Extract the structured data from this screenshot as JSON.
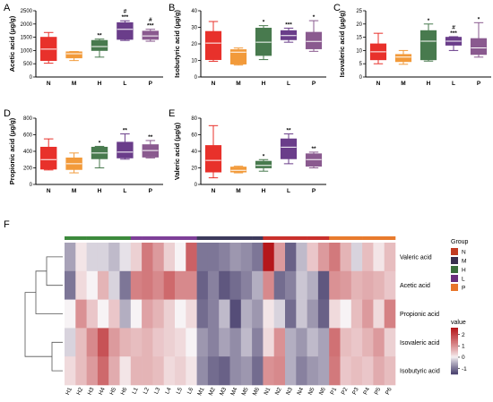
{
  "chart_data": [
    {
      "type": "box",
      "panel": "A",
      "ylabel": "Acetic acid (μg/g)",
      "ylim": [
        0,
        2500
      ],
      "yticks": [
        0,
        500,
        1000,
        1500,
        2000,
        2500
      ],
      "categories": [
        "N",
        "M",
        "H",
        "L",
        "P"
      ],
      "boxes": [
        {
          "min": 520,
          "q1": 620,
          "median": 1050,
          "q3": 1500,
          "max": 1680,
          "sig": []
        },
        {
          "min": 620,
          "q1": 720,
          "median": 880,
          "q3": 950,
          "max": 960,
          "sig": []
        },
        {
          "min": 750,
          "q1": 1000,
          "median": 1150,
          "q3": 1380,
          "max": 1430,
          "sig": [
            "**"
          ]
        },
        {
          "min": 1380,
          "q1": 1420,
          "median": 1800,
          "q3": 2050,
          "max": 2120,
          "sig": [
            "#",
            "***"
          ]
        },
        {
          "min": 1350,
          "q1": 1420,
          "median": 1550,
          "q3": 1730,
          "max": 1800,
          "sig": [
            "#",
            "***"
          ]
        }
      ]
    },
    {
      "type": "box",
      "panel": "B",
      "ylabel": "Isobutyric acid (μg/g)",
      "ylim": [
        0,
        40
      ],
      "yticks": [
        0,
        10,
        20,
        30,
        40
      ],
      "categories": [
        "N",
        "M",
        "H",
        "L",
        "P"
      ],
      "boxes": [
        {
          "min": 9.5,
          "q1": 10.5,
          "median": 20.5,
          "q3": 27.5,
          "max": 33.5,
          "sig": []
        },
        {
          "min": 7.2,
          "q1": 7.8,
          "median": 15,
          "q3": 16.5,
          "max": 17.5,
          "sig": []
        },
        {
          "min": 10.5,
          "q1": 13,
          "median": 21,
          "q3": 29.5,
          "max": 31,
          "sig": [
            "*"
          ]
        },
        {
          "min": 21,
          "q1": 22.5,
          "median": 25,
          "q3": 28,
          "max": 29.5,
          "sig": [
            "***"
          ]
        },
        {
          "min": 15.5,
          "q1": 17,
          "median": 21.5,
          "q3": 27,
          "max": 34,
          "sig": [
            "*"
          ]
        }
      ]
    },
    {
      "type": "box",
      "panel": "C",
      "ylabel": "Isovaleric acid (μg/g)",
      "ylim": [
        0,
        25
      ],
      "yticks": [
        0,
        5,
        10,
        15,
        20,
        25
      ],
      "categories": [
        "N",
        "M",
        "H",
        "L",
        "P"
      ],
      "boxes": [
        {
          "min": 5,
          "q1": 6.5,
          "median": 9.5,
          "q3": 12.5,
          "max": 16.5,
          "sig": []
        },
        {
          "min": 4.8,
          "q1": 5.8,
          "median": 7.5,
          "q3": 8.5,
          "max": 10,
          "sig": []
        },
        {
          "min": 6,
          "q1": 6.5,
          "median": 13.5,
          "q3": 17.5,
          "max": 20,
          "sig": [
            "*"
          ]
        },
        {
          "min": 10,
          "q1": 12,
          "median": 13.5,
          "q3": 15,
          "max": 15.2,
          "sig": [
            "#",
            "***"
          ]
        },
        {
          "min": 7.5,
          "q1": 8.5,
          "median": 11,
          "q3": 14.5,
          "max": 20.5,
          "sig": [
            "*"
          ]
        }
      ]
    },
    {
      "type": "box",
      "panel": "D",
      "ylabel": "Propionic acid (μg/g)",
      "ylim": [
        0,
        800
      ],
      "yticks": [
        0,
        200,
        400,
        600,
        800
      ],
      "categories": [
        "N",
        "M",
        "H",
        "L",
        "P"
      ],
      "boxes": [
        {
          "min": 175,
          "q1": 185,
          "median": 300,
          "q3": 450,
          "max": 550,
          "sig": []
        },
        {
          "min": 140,
          "q1": 180,
          "median": 250,
          "q3": 320,
          "max": 380,
          "sig": []
        },
        {
          "min": 200,
          "q1": 310,
          "median": 380,
          "q3": 450,
          "max": 460,
          "sig": [
            "*"
          ]
        },
        {
          "min": 305,
          "q1": 320,
          "median": 390,
          "q3": 510,
          "max": 610,
          "sig": [
            "**"
          ]
        },
        {
          "min": 320,
          "q1": 330,
          "median": 410,
          "q3": 480,
          "max": 530,
          "sig": [
            "**"
          ]
        }
      ]
    },
    {
      "type": "box",
      "panel": "E",
      "ylabel": "Valeric acid (μg/g)",
      "ylim": [
        0,
        80
      ],
      "yticks": [
        0,
        20,
        40,
        60,
        80
      ],
      "categories": [
        "N",
        "M",
        "H",
        "L",
        "P"
      ],
      "boxes": [
        {
          "min": 8,
          "q1": 15,
          "median": 29,
          "q3": 47,
          "max": 71,
          "sig": []
        },
        {
          "min": 14,
          "q1": 15,
          "median": 17,
          "q3": 21,
          "max": 22,
          "sig": []
        },
        {
          "min": 16,
          "q1": 20,
          "median": 23,
          "q3": 28,
          "max": 30,
          "sig": [
            "*"
          ]
        },
        {
          "min": 25,
          "q1": 31,
          "median": 45,
          "q3": 55,
          "max": 61,
          "sig": [
            "**"
          ]
        },
        {
          "min": 20,
          "q1": 22,
          "median": 30,
          "q3": 37,
          "max": 39,
          "sig": [
            "**"
          ]
        }
      ]
    },
    {
      "type": "heatmap",
      "panel": "F",
      "rows": [
        "Valeric acid",
        "Acetic acid",
        "Propionic acid",
        "Isovaleric acid",
        "Isobutyric acid"
      ],
      "columns": [
        "H1",
        "H2",
        "H3",
        "H4",
        "H5",
        "H6",
        "L1",
        "L2",
        "L3",
        "L4",
        "L5",
        "L6",
        "M1",
        "M2",
        "M3",
        "M4",
        "M5",
        "M6",
        "N1",
        "N2",
        "N3",
        "N4",
        "N5",
        "N6",
        "P1",
        "P2",
        "P3",
        "P4",
        "P5",
        "P6"
      ],
      "column_groups": [
        "H",
        "H",
        "H",
        "H",
        "H",
        "H",
        "L",
        "L",
        "L",
        "L",
        "L",
        "L",
        "M",
        "M",
        "M",
        "M",
        "M",
        "M",
        "N",
        "N",
        "N",
        "N",
        "N",
        "N",
        "P",
        "P",
        "P",
        "P",
        "P",
        "P"
      ],
      "values": [
        [
          -0.6,
          0.1,
          -0.2,
          -0.2,
          -0.4,
          -0.1,
          0.3,
          1.3,
          0.9,
          0.3,
          0.0,
          1.6,
          -1.0,
          -1.0,
          -0.9,
          -0.7,
          -0.8,
          -1.0,
          2.6,
          0.9,
          -1.2,
          -0.4,
          0.4,
          0.9,
          1.3,
          0.6,
          -0.2,
          0.5,
          0.1,
          0.5
        ],
        [
          -1.0,
          0.2,
          0.0,
          0.6,
          -0.2,
          -1.0,
          1.2,
          1.3,
          1.1,
          1.5,
          1.1,
          1.1,
          -1.2,
          -0.9,
          -1.3,
          -1.1,
          -0.9,
          -0.5,
          1.1,
          -1.1,
          -0.9,
          -0.3,
          -0.5,
          -1.3,
          1.0,
          0.9,
          0.6,
          0.7,
          0.6,
          0.4
        ],
        [
          0.0,
          1.0,
          0.4,
          0.0,
          0.4,
          -0.5,
          0.0,
          0.8,
          0.6,
          0.3,
          0.0,
          0.2,
          -1.1,
          -0.9,
          -0.4,
          -1.4,
          -0.5,
          -0.7,
          0.1,
          -0.2,
          -1.1,
          -0.3,
          -0.7,
          -1.2,
          0.2,
          0.0,
          0.5,
          0.9,
          0.2,
          1.2
        ],
        [
          -0.2,
          0.5,
          1.1,
          1.8,
          0.9,
          0.6,
          0.5,
          0.6,
          0.4,
          0.3,
          0.2,
          0.0,
          -0.7,
          -0.9,
          -0.6,
          -0.8,
          -0.4,
          -0.9,
          0.2,
          1.0,
          -0.5,
          -0.7,
          -0.4,
          -0.6,
          1.4,
          0.5,
          0.4,
          0.6,
          0.9,
          0.3
        ],
        [
          0.2,
          0.5,
          0.9,
          1.5,
          0.7,
          0.1,
          0.6,
          0.6,
          0.5,
          0.2,
          0.3,
          0.1,
          -0.8,
          -1.1,
          -1.2,
          -0.8,
          -0.7,
          -1.1,
          1.0,
          1.1,
          -0.5,
          -0.9,
          -0.7,
          -0.6,
          1.3,
          0.4,
          0.5,
          0.4,
          0.7,
          0.5
        ]
      ],
      "legend_group": {
        "title": "Group",
        "items": [
          "N",
          "M",
          "H",
          "L",
          "P"
        ]
      },
      "legend_value": {
        "title": "value",
        "ticks": [
          2,
          1,
          0,
          -1
        ],
        "range": [
          -1.5,
          2.6
        ]
      }
    }
  ],
  "colors": {
    "N": "#e8312b",
    "M": "#f28e2b",
    "H": "#3a7f3a",
    "L": "#7b2f8a",
    "P": "#e8813a",
    "box_N": "#e8312b",
    "box_M": "#f29a3a",
    "box_H": "#487a4e",
    "box_L": "#6a3d8a",
    "box_P": "#8a5a8f",
    "strip_N": "#c9302c",
    "strip_M": "#3d3a5c",
    "strip_H": "#3c8a3c",
    "strip_L": "#7e3f98",
    "strip_P": "#e87b2d",
    "legend_N": "#c23b22",
    "legend_M": "#3a2f4f",
    "legend_H": "#3b6e3b",
    "legend_L": "#6b2e7c",
    "legend_P": "#e8752a"
  },
  "panel_letters": [
    "A",
    "B",
    "C",
    "D",
    "E",
    "F"
  ]
}
